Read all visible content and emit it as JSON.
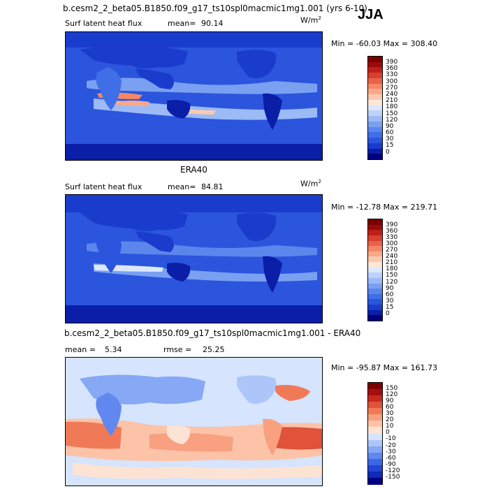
{
  "season": "JJA",
  "panels": [
    {
      "title": "b.cesm2_2_beta05.B1850.f09_g17_ts10spl0macmic1mg1.001 (yrs 6-10)",
      "field": "Surf latent heat flux",
      "mean_label": "mean=",
      "mean_value": "90.14",
      "units_base": "W/m",
      "units_exp": "2",
      "minmax": "Min = -60.03 Max = 308.40",
      "palette": [
        "#00007f",
        "#0a1ea8",
        "#1a3ccc",
        "#2c55dd",
        "#3f6ee6",
        "#5b86ec",
        "#7aa0f2",
        "#9bbaf6",
        "#bcd2fa",
        "#dce8fd",
        "#fde7d8",
        "#fcc9b0",
        "#f9a98a",
        "#f48768",
        "#e8634a",
        "#d64030",
        "#bc2018",
        "#9a0a0a",
        "#7a0000"
      ],
      "levels": [
        "390",
        "360",
        "330",
        "300",
        "270",
        "240",
        "210",
        "180",
        "150",
        "120",
        "90",
        "60",
        "30",
        "15",
        "0"
      ]
    },
    {
      "title": "ERA40",
      "field": "Surf latent heat flux",
      "mean_label": "mean=",
      "mean_value": "84.81",
      "units_base": "W/m",
      "units_exp": "2",
      "minmax": "Min = -12.78 Max = 219.71",
      "palette": [
        "#00007f",
        "#0a1ea8",
        "#1a3ccc",
        "#2c55dd",
        "#3f6ee6",
        "#5b86ec",
        "#7aa0f2",
        "#9bbaf6",
        "#bcd2fa",
        "#dce8fd",
        "#fde7d8",
        "#fcc9b0",
        "#f9a98a",
        "#f48768",
        "#e8634a",
        "#d64030",
        "#bc2018",
        "#9a0a0a",
        "#7a0000"
      ],
      "levels": [
        "390",
        "360",
        "330",
        "300",
        "270",
        "240",
        "210",
        "180",
        "150",
        "120",
        "90",
        "60",
        "30",
        "15",
        "0"
      ]
    },
    {
      "title": "b.cesm2_2_beta05.B1850.f09_g17_ts10spl0macmic1mg1.001 - ERA40",
      "mean_label": "mean =",
      "mean_value": "5.34",
      "rmse_label": "rmse =",
      "rmse_value": "25.25",
      "minmax": "Min = -95.87 Max = 161.73",
      "palette": [
        "#00007f",
        "#0f2ab4",
        "#2346d6",
        "#3d66e6",
        "#6088ef",
        "#86a8f5",
        "#adc6fa",
        "#d6e4fd",
        "#fde3d4",
        "#fcc3a8",
        "#f8a07f",
        "#f07a58",
        "#e0523a",
        "#c8291e",
        "#a60e0e",
        "#7a0000"
      ],
      "levels": [
        "150",
        "120",
        "90",
        "60",
        "30",
        "20",
        "10",
        "0",
        "-10",
        "-20",
        "-30",
        "-60",
        "-90",
        "-120",
        "-150"
      ]
    }
  ]
}
